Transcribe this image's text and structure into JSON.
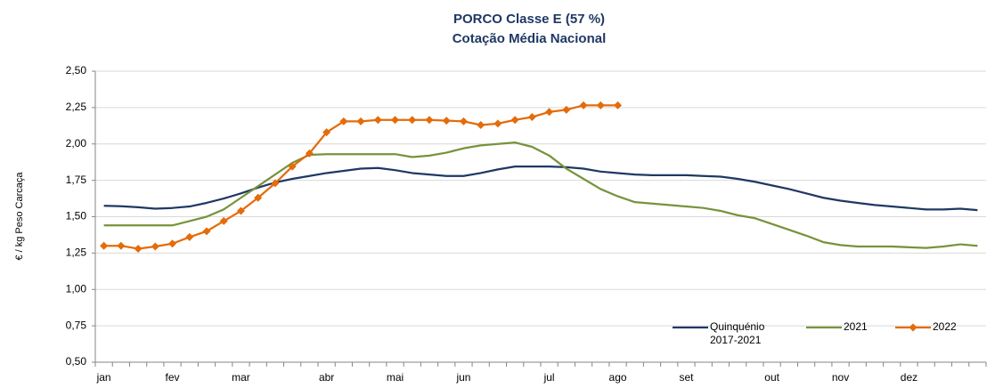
{
  "chart_data": {
    "type": "line",
    "title": "PORCO Classe E (57 %)",
    "subtitle": "Cotação Média Nacional",
    "y_label": "€ / kg Peso Carcaça",
    "categories": [
      "jan",
      null,
      null,
      null,
      "fev",
      null,
      null,
      null,
      "mar",
      null,
      null,
      null,
      null,
      "abr",
      null,
      null,
      null,
      "mai",
      null,
      null,
      null,
      "jun",
      null,
      null,
      null,
      null,
      "jul",
      null,
      null,
      null,
      "ago",
      null,
      null,
      null,
      "set",
      null,
      null,
      null,
      null,
      "out",
      null,
      null,
      null,
      "nov",
      null,
      null,
      null,
      "dez",
      null,
      null,
      null,
      null
    ],
    "series": [
      {
        "name": "Quinquénio 2017-2021",
        "color": "#1f3864",
        "marker": "none",
        "values": [
          1.575,
          1.572,
          1.565,
          1.555,
          1.56,
          1.57,
          1.595,
          1.625,
          1.66,
          1.7,
          1.735,
          1.76,
          1.78,
          1.8,
          1.815,
          1.83,
          1.835,
          1.82,
          1.8,
          1.79,
          1.78,
          1.78,
          1.8,
          1.825,
          1.845,
          1.845,
          1.845,
          1.84,
          1.83,
          1.81,
          1.8,
          1.79,
          1.785,
          1.785,
          1.785,
          1.78,
          1.775,
          1.76,
          1.74,
          1.715,
          1.69,
          1.66,
          1.63,
          1.61,
          1.595,
          1.58,
          1.57,
          1.56,
          1.55,
          1.55,
          1.555,
          1.545
        ]
      },
      {
        "name": "2021",
        "color": "#77933c",
        "marker": "none",
        "values": [
          1.44,
          1.44,
          1.44,
          1.44,
          1.44,
          1.47,
          1.5,
          1.55,
          1.63,
          1.71,
          1.79,
          1.87,
          1.925,
          1.93,
          1.93,
          1.93,
          1.93,
          1.93,
          1.91,
          1.92,
          1.94,
          1.97,
          1.99,
          2.0,
          2.01,
          1.98,
          1.92,
          1.83,
          1.76,
          1.69,
          1.64,
          1.6,
          1.59,
          1.58,
          1.57,
          1.56,
          1.54,
          1.51,
          1.49,
          1.45,
          1.41,
          1.37,
          1.325,
          1.305,
          1.295,
          1.295,
          1.295,
          1.29,
          1.285,
          1.295,
          1.31,
          1.3
        ]
      },
      {
        "name": "2022",
        "color": "#e46c0a",
        "marker": "diamond",
        "values": [
          1.3,
          1.3,
          1.28,
          1.295,
          1.315,
          1.36,
          1.4,
          1.47,
          1.54,
          1.63,
          1.73,
          1.845,
          1.935,
          2.08,
          2.155,
          2.155,
          2.165,
          2.165,
          2.165,
          2.165,
          2.16,
          2.155,
          2.13,
          2.14,
          2.165,
          2.185,
          2.22,
          2.235,
          2.265,
          2.265,
          2.265,
          null,
          null,
          null,
          null,
          null,
          null,
          null,
          null,
          null,
          null,
          null,
          null,
          null,
          null,
          null,
          null,
          null,
          null,
          null,
          null,
          null
        ]
      }
    ],
    "ylim": [
      0.5,
      2.5
    ],
    "yticks": [
      {
        "value": 0.5,
        "label": "0,50"
      },
      {
        "value": 0.75,
        "label": "0,75"
      },
      {
        "value": 1,
        "label": "1,00"
      },
      {
        "value": 1.25,
        "label": "1,25"
      },
      {
        "value": 1.5,
        "label": "1,50"
      },
      {
        "value": 1.75,
        "label": "1,75"
      },
      {
        "value": 2,
        "label": "2,00"
      },
      {
        "value": 2.25,
        "label": "2,25"
      },
      {
        "value": 2.5,
        "label": "2,50"
      }
    ],
    "grid": true,
    "legend": "bottom-right"
  }
}
